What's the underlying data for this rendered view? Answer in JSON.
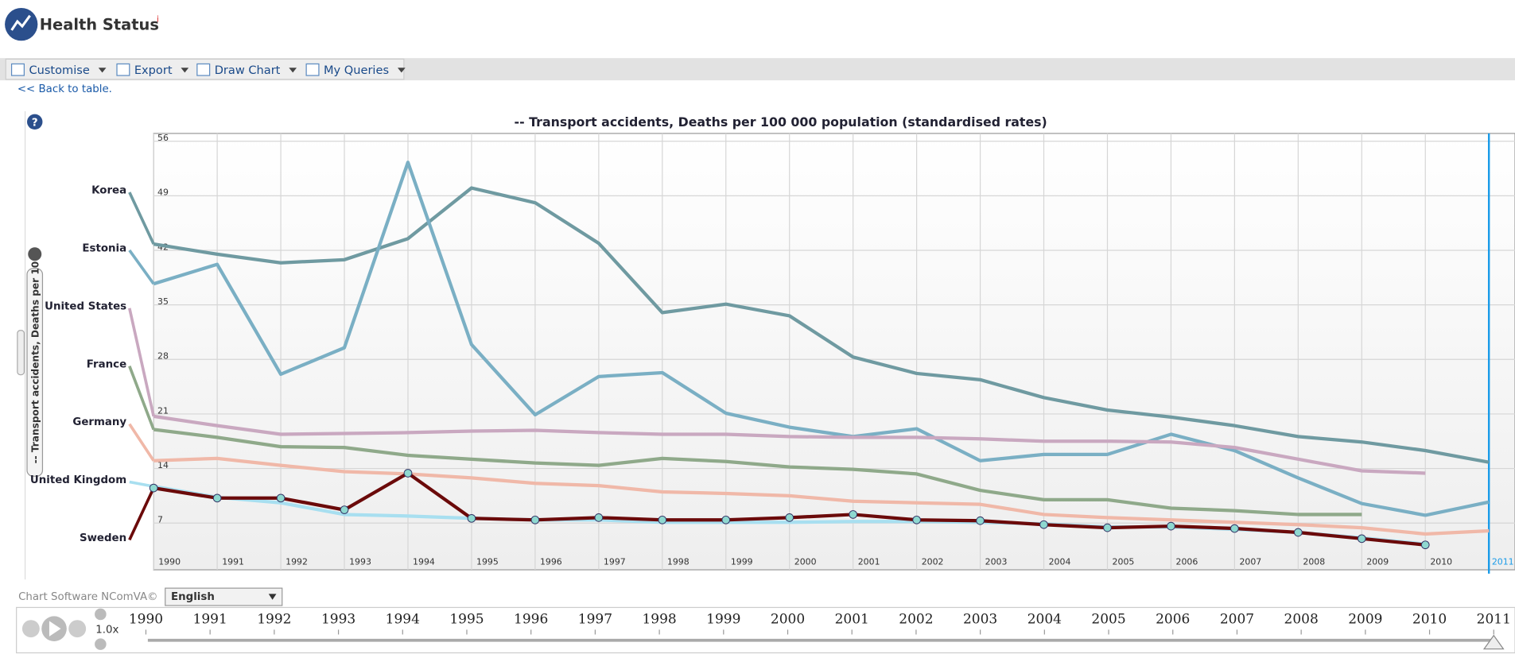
{
  "app": {
    "title": "Health Status",
    "info": "i",
    "toolbar": [
      "Customise",
      "Export",
      "Draw Chart",
      "My Queries"
    ],
    "back_link": "<< Back to table.",
    "side_tab": "-- Transport accidents, Deaths per 10",
    "footer": "Chart Software NComVA©",
    "language": "English",
    "speed": "1.0x"
  },
  "chart_data": {
    "type": "line",
    "title": "-- Transport accidents, Deaths per 100 000 population (standardised rates)",
    "categories": [
      "1990",
      "1991",
      "1992",
      "1993",
      "1994",
      "1995",
      "1996",
      "1997",
      "1998",
      "1999",
      "2000",
      "2001",
      "2002",
      "2003",
      "2004",
      "2005",
      "2006",
      "2007",
      "2008",
      "2009",
      "2010",
      "2011"
    ],
    "ylim": [
      1,
      57
    ],
    "yticks": [
      7,
      14,
      21,
      28,
      35,
      42,
      49,
      56
    ],
    "grid": true,
    "series": [
      {
        "name": "Korea",
        "color": "#6f9aa1",
        "values": [
          42.8,
          41.5,
          40.4,
          40.8,
          43.5,
          50,
          48.1,
          42.9,
          34,
          35.1,
          33.6,
          28.3,
          26.2,
          25.4,
          23.1,
          21.5,
          20.6,
          19.5,
          18.1,
          17.4,
          16.3,
          14.8
        ]
      },
      {
        "name": "Estonia",
        "color": "#7aafc4",
        "values": [
          37.7,
          40.2,
          26.1,
          29.5,
          53.3,
          29.9,
          20.9,
          25.8,
          26.3,
          21.1,
          19.3,
          18.1,
          19.1,
          15.0,
          15.8,
          15.8,
          18.4,
          16.3,
          12.8,
          9.5,
          8.0,
          9.7
        ]
      },
      {
        "name": "United States",
        "color": "#c9a8c0",
        "values": [
          20.7,
          19.5,
          18.4,
          18.5,
          18.6,
          18.8,
          18.9,
          18.6,
          18.4,
          18.4,
          18.1,
          18.0,
          18.0,
          17.8,
          17.5,
          17.5,
          17.4,
          16.7,
          15.2,
          13.7,
          13.4,
          null
        ]
      },
      {
        "name": "France",
        "color": "#8fa98a",
        "values": [
          19,
          18,
          16.8,
          16.7,
          15.7,
          15.2,
          14.7,
          14.4,
          15.3,
          14.9,
          14.2,
          13.9,
          13.3,
          11.2,
          10,
          10,
          8.9,
          8.6,
          8.1,
          8.1,
          null,
          null
        ]
      },
      {
        "name": "Germany",
        "color": "#f0b8a8",
        "values": [
          15,
          15.3,
          14.4,
          13.6,
          13.3,
          12.8,
          12.1,
          11.8,
          11,
          10.8,
          10.5,
          9.8,
          9.6,
          9.4,
          8.1,
          7.7,
          7.4,
          7.1,
          6.8,
          6.4,
          5.6,
          6.0
        ]
      },
      {
        "name": "United Kingdom",
        "color": "#a8dff0",
        "values": [
          11.7,
          10.3,
          9.6,
          8.1,
          7.9,
          7.6,
          7.4,
          7.4,
          7.1,
          7.1,
          7.1,
          7.2,
          7.2,
          7.1,
          6.9,
          6.5,
          6.5,
          6.2,
          5.8,
          5.1,
          4.3,
          null
        ]
      },
      {
        "name": "Sweden",
        "color": "#6b0a0a",
        "markers": true,
        "values": [
          11.5,
          10.2,
          10.2,
          8.7,
          13.4,
          7.6,
          7.4,
          7.7,
          7.4,
          7.4,
          7.7,
          8.1,
          7.4,
          7.3,
          6.8,
          6.4,
          6.6,
          6.3,
          5.8,
          5.0,
          4.2,
          null
        ]
      }
    ]
  }
}
